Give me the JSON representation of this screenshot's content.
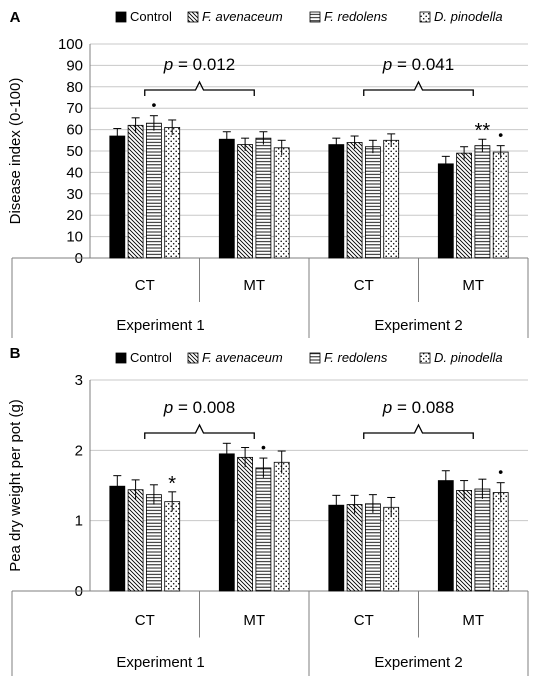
{
  "legend_items": [
    {
      "name": "Control",
      "italic": false
    },
    {
      "name": "F. avenaceum",
      "italic": true
    },
    {
      "name": "F. redolens",
      "italic": true
    },
    {
      "name": "D. pinodella",
      "italic": true
    }
  ],
  "chart_data": [
    {
      "type": "bar",
      "panel_label": "A",
      "ylabel": "Disease index (0-100)",
      "ylim": [
        0,
        100
      ],
      "yticks": [
        0,
        10,
        20,
        30,
        40,
        50,
        60,
        70,
        80,
        90,
        100
      ],
      "tick_labels": [
        "0",
        "10",
        "20",
        "30",
        "40",
        "50",
        "60",
        "70",
        "80",
        "90",
        "100"
      ],
      "grid": true,
      "legend": "top",
      "experiments": [
        "Experiment 1",
        "Experiment 2"
      ],
      "categories": [
        "CT",
        "MT",
        "CT",
        "MT"
      ],
      "series": [
        {
          "name": "Control",
          "values": [
            57,
            55.5,
            53,
            44
          ],
          "errors": [
            3.5,
            3.5,
            3,
            3.5
          ]
        },
        {
          "name": "F. avenaceum",
          "values": [
            62,
            53,
            54,
            49
          ],
          "errors": [
            3.5,
            3,
            3,
            3
          ]
        },
        {
          "name": "F. redolens",
          "values": [
            63,
            56,
            52,
            52.5
          ],
          "errors": [
            3.5,
            3,
            3,
            3
          ]
        },
        {
          "name": "D. pinodella",
          "values": [
            61,
            51.5,
            55,
            49.5
          ],
          "errors": [
            3.5,
            3.5,
            3,
            3
          ]
        }
      ],
      "annotations": [
        {
          "text": "p = 0.012",
          "experiment": 0
        },
        {
          "text": "p = 0.041",
          "experiment": 1
        }
      ],
      "markers": [
        {
          "category": 0,
          "series": 2,
          "text": "•"
        },
        {
          "category": 3,
          "series": 2,
          "text": "**"
        },
        {
          "category": 3,
          "series": 3,
          "text": "•"
        }
      ]
    },
    {
      "type": "bar",
      "panel_label": "B",
      "ylabel": "Pea dry weight per pot (g)",
      "ylim": [
        0,
        3
      ],
      "yticks": [
        0,
        1,
        2,
        3
      ],
      "tick_labels": [
        "0",
        "1",
        "2",
        "3"
      ],
      "grid": true,
      "legend": "top",
      "experiments": [
        "Experiment 1",
        "Experiment 2"
      ],
      "categories": [
        "CT",
        "MT",
        "CT",
        "MT"
      ],
      "series": [
        {
          "name": "Control",
          "values": [
            1.49,
            1.95,
            1.22,
            1.57
          ],
          "errors": [
            0.15,
            0.15,
            0.14,
            0.14
          ]
        },
        {
          "name": "F. avenaceum",
          "values": [
            1.44,
            1.9,
            1.23,
            1.43
          ],
          "errors": [
            0.14,
            0.14,
            0.13,
            0.14
          ]
        },
        {
          "name": "F. redolens",
          "values": [
            1.37,
            1.75,
            1.24,
            1.45
          ],
          "errors": [
            0.14,
            0.14,
            0.13,
            0.14
          ]
        },
        {
          "name": "D. pinodella",
          "values": [
            1.27,
            1.83,
            1.19,
            1.4
          ],
          "errors": [
            0.14,
            0.16,
            0.14,
            0.14
          ]
        }
      ],
      "annotations": [
        {
          "text": "p = 0.008",
          "experiment": 0
        },
        {
          "text": "p = 0.088",
          "experiment": 1
        }
      ],
      "markers": [
        {
          "category": 0,
          "series": 3,
          "text": "*"
        },
        {
          "category": 1,
          "series": 2,
          "text": "•"
        },
        {
          "category": 3,
          "series": 3,
          "text": "•"
        }
      ]
    }
  ]
}
